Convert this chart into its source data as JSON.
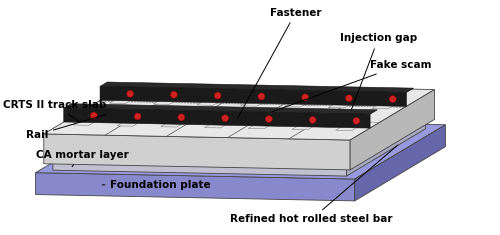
{
  "background_color": "#ffffff",
  "font_size": 7.5,
  "font_size_bold": 8.0,
  "border_color": "#000000",
  "labels": {
    "fastener": "Fastener",
    "injection_gap": "Injection gap",
    "fake_scam": "Fake scam",
    "crts_track_slab": "CRTS II track slab",
    "rail": "Rail",
    "ca_mortar_layer": "CA mortar layer",
    "foundation_plate": "Foundation plate",
    "refined_hot_rolled": "Refined hot rolled steel bar"
  },
  "colors": {
    "foundation_front": "#8888cc",
    "foundation_top": "#9999dd",
    "foundation_right": "#6666aa",
    "ca_front": "#c0c0d0",
    "ca_top": "#d0d0e0",
    "ca_right": "#a8a8c0",
    "slab_front": "#d0d0d0",
    "slab_top": "#e8e8e8",
    "slab_right": "#b8b8b8",
    "slab_top_surface": "#dcdcdc",
    "rail_color": "#1a1a1a",
    "fastener_color": "#e0e0e0",
    "clip_color": "#cc2222",
    "edge_color": "#444444",
    "line_color": "#555555"
  }
}
